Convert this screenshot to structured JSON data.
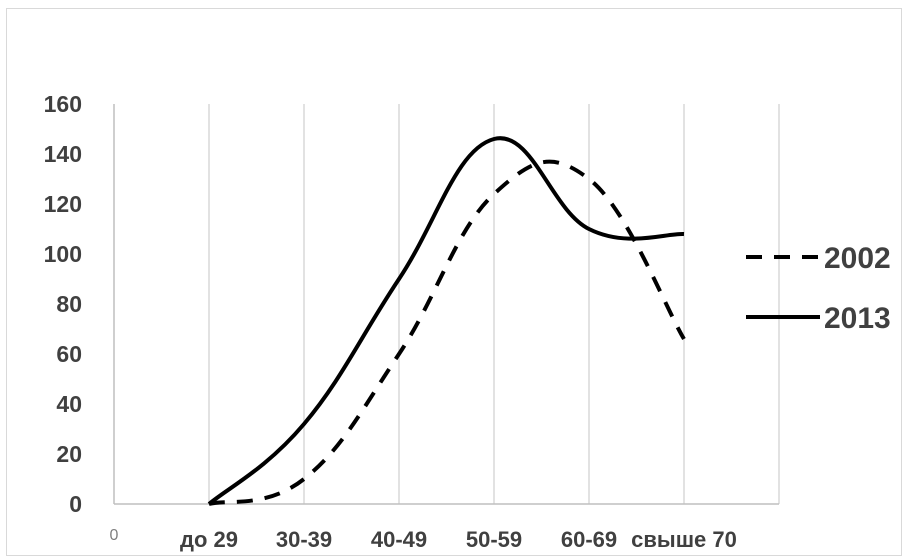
{
  "chart_data": {
    "type": "line",
    "categories": [
      "0",
      "до 29",
      "30-39",
      "40-49",
      "50-59",
      "60-69",
      "свыше 70"
    ],
    "series": [
      {
        "name": "2002",
        "style": "dashed",
        "color": "#000000",
        "values": [
          null,
          0,
          10,
          60,
          124,
          130,
          66
        ]
      },
      {
        "name": "2013",
        "style": "solid",
        "color": "#000000",
        "values": [
          null,
          0,
          32,
          90,
          146,
          110,
          108
        ]
      }
    ],
    "title": "",
    "xlabel": "",
    "ylabel": "",
    "ylim": [
      0,
      160
    ],
    "yticks": [
      "0",
      "20",
      "40",
      "60",
      "80",
      "100",
      "120",
      "140",
      "160"
    ],
    "grid": "vertical",
    "legend_position": "right"
  }
}
